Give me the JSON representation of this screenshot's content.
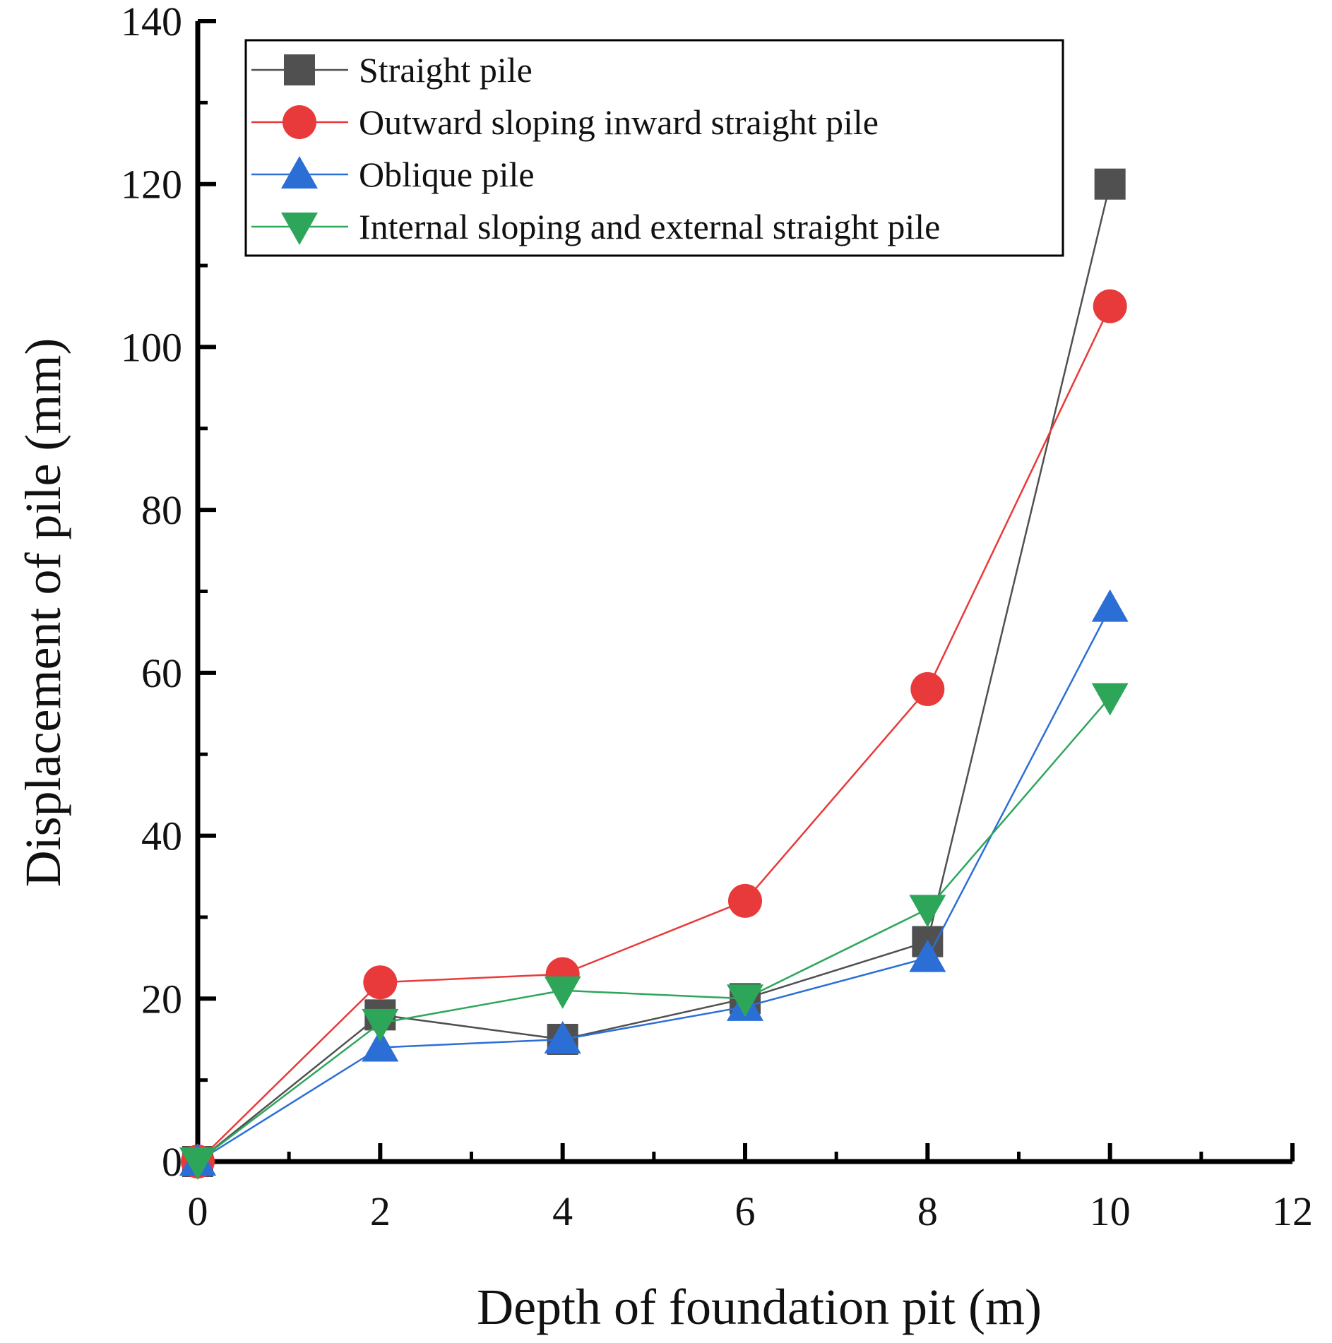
{
  "chart_data": {
    "type": "line",
    "title": "",
    "xlabel": "Depth of foundation pit (m)",
    "ylabel": "Displacement of pile (mm)",
    "xlim": [
      0,
      12
    ],
    "ylim": [
      0,
      140
    ],
    "x_ticks": [
      "0",
      "2",
      "4",
      "6",
      "8",
      "10",
      "12"
    ],
    "y_ticks": [
      "0",
      "20",
      "40",
      "60",
      "80",
      "100",
      "120",
      "140"
    ],
    "grid": false,
    "legend_position": "top-right",
    "x": [
      0,
      2,
      4,
      6,
      8,
      10
    ],
    "series": [
      {
        "name": "Straight pile",
        "marker": "square",
        "color": "#505050",
        "values": [
          0,
          18,
          15,
          20,
          27,
          120
        ]
      },
      {
        "name": "Outward sloping inward straight pile",
        "marker": "circle",
        "color": "#e83a3a",
        "values": [
          0,
          22,
          23,
          32,
          58,
          105
        ]
      },
      {
        "name": "Oblique pile",
        "marker": "triangle-up",
        "color": "#2b6fd6",
        "values": [
          0,
          14,
          15,
          19,
          25,
          68
        ]
      },
      {
        "name": "Internal sloping and external straight pile",
        "marker": "triangle-down",
        "color": "#2ea65a",
        "values": [
          0,
          17,
          21,
          20,
          31,
          57
        ]
      }
    ]
  }
}
